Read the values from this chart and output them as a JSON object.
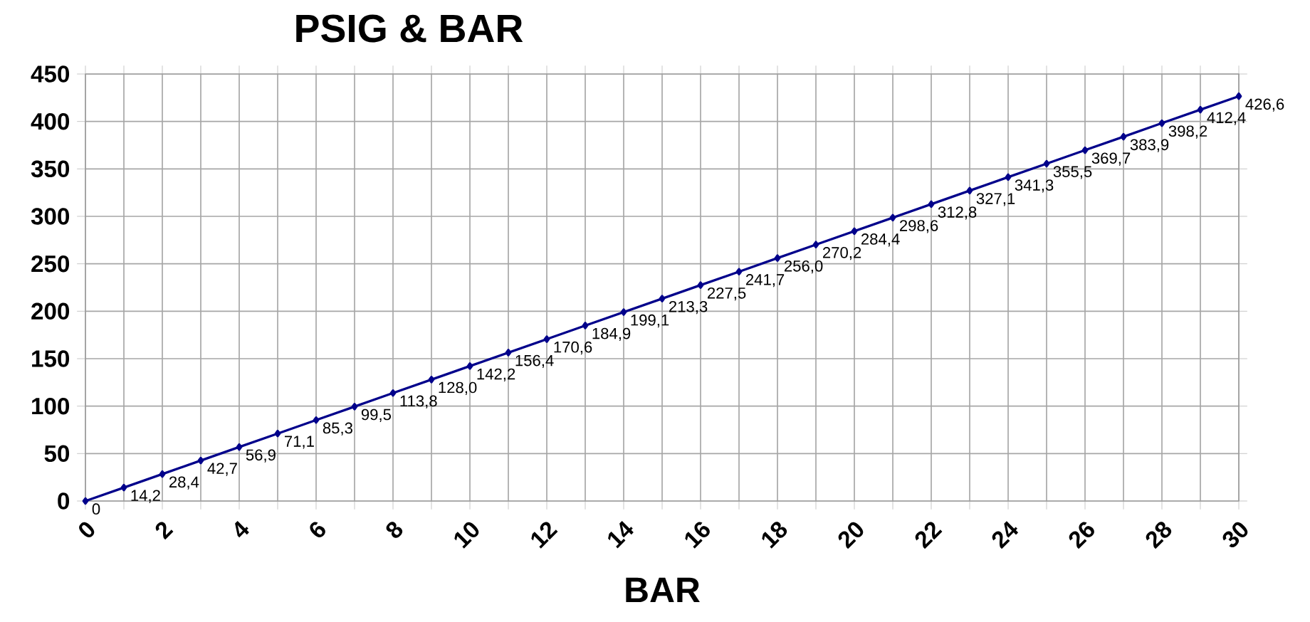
{
  "chart_data": {
    "type": "line",
    "title": "PSIG & BAR",
    "xlabel": "BAR",
    "x": [
      0,
      1,
      2,
      3,
      4,
      5,
      6,
      7,
      8,
      9,
      10,
      11,
      12,
      13,
      14,
      15,
      16,
      17,
      18,
      19,
      20,
      21,
      22,
      23,
      24,
      25,
      26,
      27,
      28,
      29,
      30
    ],
    "series": [
      {
        "color": "#00008b",
        "values": [
          0,
          14.2,
          28.4,
          42.7,
          56.9,
          71.1,
          85.3,
          99.5,
          113.8,
          128.0,
          142.2,
          156.4,
          170.6,
          184.9,
          199.1,
          213.3,
          227.5,
          241.7,
          256.0,
          270.2,
          284.4,
          298.6,
          312.8,
          327.1,
          341.3,
          355.5,
          369.7,
          383.9,
          398.2,
          412.4,
          426.6
        ],
        "value_labels": [
          "0",
          "14,2",
          "28,4",
          "42,7",
          "56,9",
          "71,1",
          "85,3",
          "99,5",
          "113,8",
          "128,0",
          "142,2",
          "156,4",
          "170,6",
          "184,9",
          "199,1",
          "213,3",
          "227,5",
          "241,7",
          "256,0",
          "270,2",
          "284,4",
          "298,6",
          "312,8",
          "327,1",
          "341,3",
          "355,5",
          "369,7",
          "383,9",
          "398,2",
          "412,4",
          "426,6"
        ]
      }
    ],
    "xlim": [
      0,
      30
    ],
    "ylim": [
      0,
      450
    ],
    "xticks": [
      0,
      {
        "value": 1,
        "label": null
      },
      2,
      {
        "value": 3,
        "label": null
      },
      4,
      {
        "value": 5,
        "label": null
      },
      6,
      {
        "value": 7,
        "label": null
      },
      8,
      {
        "value": 9,
        "label": null
      },
      10,
      {
        "value": 11,
        "label": null
      },
      12,
      {
        "value": 13,
        "label": null
      },
      14,
      {
        "value": 15,
        "label": null
      },
      16,
      {
        "value": 17,
        "label": null
      },
      18,
      {
        "value": 19,
        "label": null
      },
      20,
      {
        "value": 21,
        "label": null
      },
      22,
      {
        "value": 23,
        "label": null
      },
      24,
      {
        "value": 25,
        "label": null
      },
      26,
      {
        "value": 27,
        "label": null
      },
      28,
      {
        "value": 29,
        "label": null
      },
      30
    ],
    "yticks": [
      0,
      50,
      100,
      150,
      200,
      250,
      300,
      350,
      400,
      450
    ],
    "grid": true,
    "marker": "diamond",
    "line_style": "solid"
  }
}
